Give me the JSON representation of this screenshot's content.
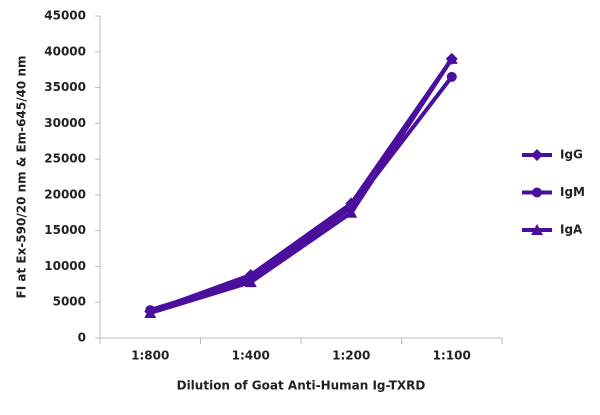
{
  "chart_data": {
    "type": "line",
    "y_label": "FI at Ex-590/20 nm & Em-645/40 nm",
    "x_label": "Dilution of Goat Anti-Human Ig-TXRD",
    "categories": [
      "1:800",
      "1:400",
      "1:200",
      "1:100"
    ],
    "series": [
      {
        "name": "IgG",
        "color": "#4b0f9e",
        "marker": "diamond",
        "values": [
          3700,
          8800,
          18800,
          39000
        ]
      },
      {
        "name": "IgM",
        "color": "#4b0f9e",
        "marker": "circle",
        "values": [
          3900,
          8300,
          18200,
          36500
        ]
      },
      {
        "name": "IgA",
        "color": "#4b0f9e",
        "marker": "triangle",
        "values": [
          3500,
          7800,
          17500,
          39000
        ]
      }
    ],
    "ylim": [
      0,
      45000
    ],
    "yticks": [
      0,
      5000,
      10000,
      15000,
      20000,
      25000,
      30000,
      35000,
      40000,
      45000
    ],
    "grid": false,
    "legend": "right"
  }
}
